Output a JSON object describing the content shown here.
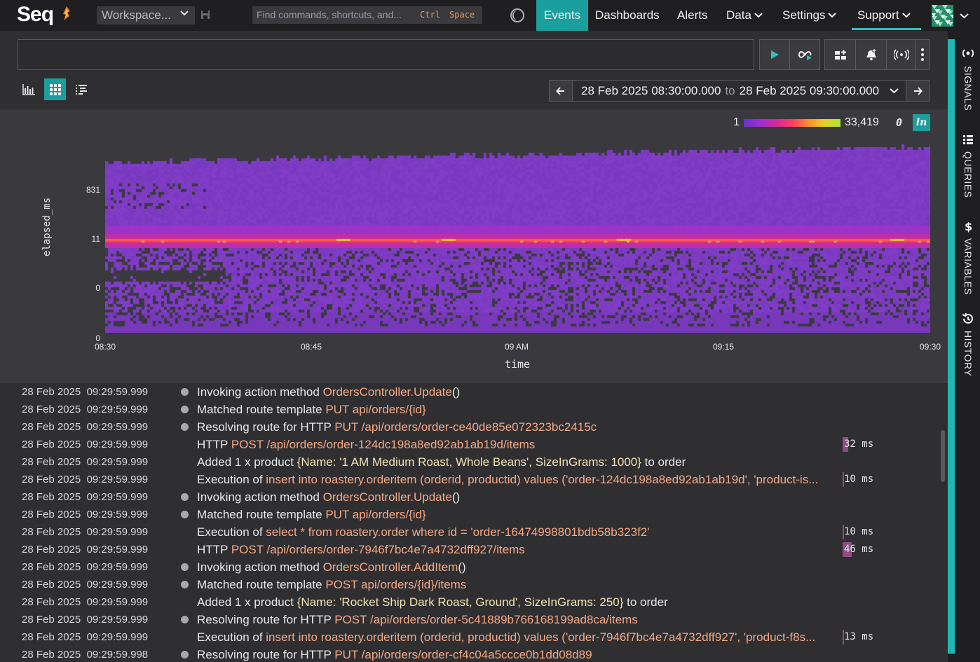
{
  "app": {
    "logo": "Seq"
  },
  "topbar": {
    "workspace_label": "Workspace...",
    "command_placeholder": "Find commands, shortcuts, and...",
    "command_key1": "Ctrl",
    "command_key2": "Space",
    "nav": {
      "events": "Events",
      "dashboards": "Dashboards",
      "alerts": "Alerts",
      "data": "Data",
      "settings": "Settings",
      "support": "Support"
    }
  },
  "toolbar": {
    "date_from": "28 Feb 2025 08:30:00.000",
    "date_to_word": "to",
    "date_to": "28 Feb 2025 09:30:00.000"
  },
  "chart_data": {
    "type": "heatmap",
    "xlabel": "time",
    "ylabel": "elapsed_ms",
    "x_ticks": [
      "08:30",
      "08:45",
      "09 AM",
      "09:15",
      "09:30"
    ],
    "y_ticks": [
      "831",
      "11",
      "0",
      "0"
    ],
    "legend_min": "1",
    "legend_max": "33,419",
    "legend_zero": "0",
    "legend_toggle": "ln",
    "colors": [
      "#6a32c8",
      "#9b30d0",
      "#d12a9d",
      "#ff3c60",
      "#ff8c2a",
      "#e8d020",
      "#a8e83a"
    ]
  },
  "sidebar": {
    "signals": "SIGNALS",
    "queries": "QUERIES",
    "variables": "VARIABLES",
    "history": "HISTORY"
  },
  "events": [
    {
      "ts": "28 Feb 2025  09:29:59.999",
      "dot": true,
      "parts": [
        [
          "Invoking action method ",
          0
        ],
        [
          "OrdersController.Update",
          1
        ],
        [
          "()",
          0
        ]
      ],
      "ms": ""
    },
    {
      "ts": "28 Feb 2025  09:29:59.999",
      "dot": true,
      "parts": [
        [
          "Matched route template ",
          0
        ],
        [
          "PUT api/orders/{id}",
          1
        ]
      ],
      "ms": ""
    },
    {
      "ts": "28 Feb 2025  09:29:59.999",
      "dot": true,
      "parts": [
        [
          "Resolving route for HTTP ",
          0
        ],
        [
          "PUT",
          1
        ],
        [
          " ",
          0
        ],
        [
          "/api/orders/order-ce40de85e072323bc2415c",
          1
        ]
      ],
      "ms": ""
    },
    {
      "ts": "28 Feb 2025  09:29:59.999",
      "dot": false,
      "parts": [
        [
          "HTTP ",
          0
        ],
        [
          "POST",
          1
        ],
        [
          " ",
          0
        ],
        [
          "/api/orders/order-124dc198a8ed92ab1ab19d/items",
          1
        ]
      ],
      "ms": "32 ms",
      "ms_fraction": 0.14
    },
    {
      "ts": "28 Feb 2025  09:29:59.999",
      "dot": false,
      "parts": [
        [
          "Added 1 x product ",
          0
        ],
        [
          "{Name: '1 AM Medium Roast, Whole Beans', SizeInGrams: 1000}",
          2
        ],
        [
          " to order",
          0
        ]
      ],
      "ms": ""
    },
    {
      "ts": "28 Feb 2025  09:29:59.999",
      "dot": false,
      "parts": [
        [
          "Execution of ",
          0
        ],
        [
          "insert into roastery.orderitem (orderid, productid) values ('order-124dc198a8ed92ab1ab19d', 'product-is...",
          1
        ]
      ],
      "ms": "10 ms",
      "ms_fraction": 0.02
    },
    {
      "ts": "28 Feb 2025  09:29:59.999",
      "dot": true,
      "parts": [
        [
          "Invoking action method ",
          0
        ],
        [
          "OrdersController.Update",
          1
        ],
        [
          "()",
          0
        ]
      ],
      "ms": ""
    },
    {
      "ts": "28 Feb 2025  09:29:59.999",
      "dot": true,
      "parts": [
        [
          "Matched route template ",
          0
        ],
        [
          "PUT api/orders/{id}",
          1
        ]
      ],
      "ms": ""
    },
    {
      "ts": "28 Feb 2025  09:29:59.999",
      "dot": false,
      "parts": [
        [
          "Execution of ",
          0
        ],
        [
          "select * from roastery.order where id = 'order-16474998801bdb58b323f2'",
          1
        ]
      ],
      "ms": "10 ms",
      "ms_fraction": 0.02
    },
    {
      "ts": "28 Feb 2025  09:29:59.999",
      "dot": false,
      "parts": [
        [
          "HTTP ",
          0
        ],
        [
          "POST",
          1
        ],
        [
          " ",
          0
        ],
        [
          "/api/orders/order-7946f7bc4e7a4732dff927/items",
          1
        ]
      ],
      "ms": "46 ms",
      "ms_fraction": 0.22
    },
    {
      "ts": "28 Feb 2025  09:29:59.999",
      "dot": true,
      "parts": [
        [
          "Invoking action method ",
          0
        ],
        [
          "OrdersController.AddItem",
          1
        ],
        [
          "()",
          0
        ]
      ],
      "ms": ""
    },
    {
      "ts": "28 Feb 2025  09:29:59.999",
      "dot": true,
      "parts": [
        [
          "Matched route template ",
          0
        ],
        [
          "POST api/orders/{id}/items",
          1
        ]
      ],
      "ms": ""
    },
    {
      "ts": "28 Feb 2025  09:29:59.999",
      "dot": false,
      "parts": [
        [
          "Added 1 x product ",
          0
        ],
        [
          "{Name: 'Rocket Ship Dark Roast, Ground', SizeInGrams: 250}",
          2
        ],
        [
          " to order",
          0
        ]
      ],
      "ms": ""
    },
    {
      "ts": "28 Feb 2025  09:29:59.999",
      "dot": true,
      "parts": [
        [
          "Resolving route for HTTP ",
          0
        ],
        [
          "POST",
          1
        ],
        [
          " ",
          0
        ],
        [
          "/api/orders/order-5c41889b766168199ad8ca/items",
          1
        ]
      ],
      "ms": ""
    },
    {
      "ts": "28 Feb 2025  09:29:59.999",
      "dot": false,
      "parts": [
        [
          "Execution of ",
          0
        ],
        [
          "insert into roastery.orderitem (orderid, productid) values ('order-7946f7bc4e7a4732dff927', 'product-f8s...",
          1
        ]
      ],
      "ms": "13 ms",
      "ms_fraction": 0.03
    },
    {
      "ts": "28 Feb 2025  09:29:59.998",
      "dot": true,
      "parts": [
        [
          "Resolving route for HTTP ",
          0
        ],
        [
          "PUT",
          1
        ],
        [
          " ",
          0
        ],
        [
          "/api/orders/order-cf4c04a5ccce0b1dd08d89",
          1
        ]
      ],
      "ms": ""
    }
  ]
}
